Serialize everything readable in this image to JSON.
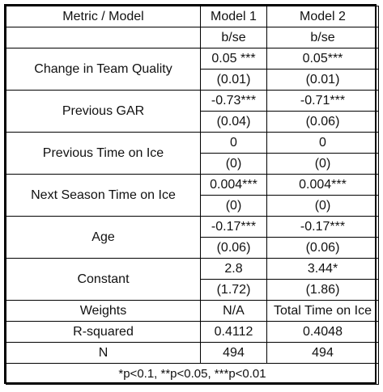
{
  "table": {
    "headers": [
      "Metric / Model",
      "Model 1",
      "Model 2"
    ],
    "subheader": [
      "",
      "b/se",
      "b/se"
    ],
    "rows": [
      {
        "metric": "Change in Team Quality",
        "m1_b": "0.05 ***",
        "m1_se": "(0.01)",
        "m2_b": "0.05***",
        "m2_se": "(0.01)"
      },
      {
        "metric": "Previous GAR",
        "m1_b": "-0.73***",
        "m1_se": "(0.04)",
        "m2_b": "-0.71***",
        "m2_se": "(0.06)"
      },
      {
        "metric": "Previous Time on Ice",
        "m1_b": "0",
        "m1_se": "(0)",
        "m2_b": "0",
        "m2_se": "(0)"
      },
      {
        "metric": "Next Season Time on Ice",
        "m1_b": "0.004***",
        "m1_se": "(0)",
        "m2_b": "0.004***",
        "m2_se": "(0)"
      },
      {
        "metric": "Age",
        "m1_b": "-0.17***",
        "m1_se": "(0.06)",
        "m2_b": "-0.17***",
        "m2_se": "(0.06)"
      },
      {
        "metric": "Constant",
        "m1_b": "2.8",
        "m1_se": "(1.72)",
        "m2_b": "3.44*",
        "m2_se": "(1.86)"
      }
    ],
    "weights": {
      "label": "Weights",
      "m1": "N/A",
      "m2": "Total Time on Ice"
    },
    "r_squared": {
      "label": "R-squared",
      "m1": "0.4112",
      "m2": "0.4048"
    },
    "n": {
      "label": "N",
      "m1": "494",
      "m2": "494"
    },
    "footnote": "*p<0.1, **p<0.05, ***p<0.01"
  }
}
